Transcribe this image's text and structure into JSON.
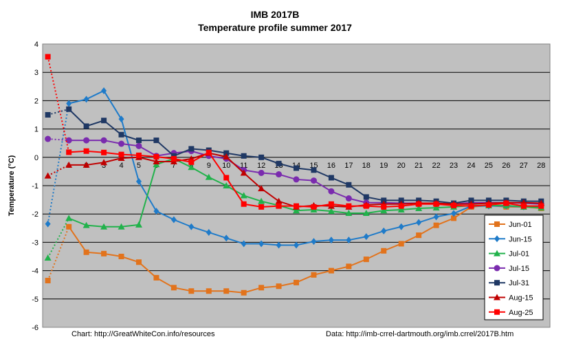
{
  "chart_data": {
    "type": "line",
    "title": "IMB 2017B",
    "subtitle": "Temperature profile summer 2017",
    "xlabel": "",
    "ylabel": "Temperature (°C)",
    "ylim": [
      -6,
      4
    ],
    "yticks": [
      "4",
      "3",
      "2",
      "1",
      "0",
      "-1",
      "-2",
      "-3",
      "-4",
      "-5",
      "-6"
    ],
    "x": [
      1,
      2,
      3,
      4,
      5,
      6,
      7,
      8,
      9,
      10,
      11,
      12,
      13,
      14,
      15,
      16,
      17,
      18,
      19,
      20,
      21,
      22,
      23,
      24,
      25,
      26,
      27,
      28
    ],
    "grid": true,
    "legend": "bottom-right",
    "footer_left": "Chart: http://GreatWhiteCon.info/resources",
    "footer_right": "Data:  http://imb-crrel-dartmouth.org/imb.crrel/2017B.htm",
    "series": [
      {
        "name": "Jun-01",
        "color": "#E2731C",
        "marker": "square",
        "surface": -4.35,
        "values": [
          -2.45,
          -3.35,
          -3.4,
          -3.5,
          -3.7,
          -4.25,
          -4.6,
          -4.72,
          -4.72,
          -4.72,
          -4.78,
          -4.6,
          -4.55,
          -4.42,
          -4.15,
          -4.0,
          -3.85,
          -3.6,
          -3.3,
          -3.05,
          -2.75,
          -2.4,
          -2.15,
          -1.75,
          -1.7,
          -1.75,
          -1.75,
          -1.8
        ]
      },
      {
        "name": "Jun-15",
        "color": "#1F7BC9",
        "marker": "diamond",
        "surface": -2.35,
        "values": [
          1.9,
          2.05,
          2.35,
          1.35,
          -0.85,
          -1.9,
          -2.2,
          -2.45,
          -2.65,
          -2.85,
          -3.05,
          -3.05,
          -3.1,
          -3.1,
          -2.97,
          -2.92,
          -2.92,
          -2.8,
          -2.6,
          -2.45,
          -2.3,
          -2.1,
          -1.98,
          -1.72,
          -1.72,
          -1.72,
          -1.75,
          -1.75
        ]
      },
      {
        "name": "Jul-01",
        "color": "#21B24B",
        "marker": "triangle",
        "surface": -3.55,
        "values": [
          -2.15,
          -2.4,
          -2.45,
          -2.45,
          -2.38,
          -0.25,
          -0.05,
          -0.35,
          -0.7,
          -1.0,
          -1.35,
          -1.55,
          -1.7,
          -1.88,
          -1.85,
          -1.9,
          -1.97,
          -1.97,
          -1.88,
          -1.85,
          -1.8,
          -1.78,
          -1.75,
          -1.7,
          -1.7,
          -1.7,
          -1.75,
          -1.78
        ]
      },
      {
        "name": "Jul-15",
        "color": "#7A2BAE",
        "marker": "circle",
        "surface": 0.65,
        "values": [
          0.6,
          0.6,
          0.6,
          0.48,
          0.4,
          0.05,
          0.15,
          0.22,
          0.05,
          -0.05,
          -0.45,
          -0.55,
          -0.6,
          -0.78,
          -0.82,
          -1.2,
          -1.45,
          -1.6,
          -1.6,
          -1.62,
          -1.62,
          -1.62,
          -1.65,
          -1.6,
          -1.6,
          -1.6,
          -1.62,
          -1.65
        ]
      },
      {
        "name": "Jul-31",
        "color": "#1F3864",
        "marker": "square",
        "surface": 1.5,
        "values": [
          1.7,
          1.1,
          1.3,
          0.8,
          0.6,
          0.6,
          0.05,
          0.3,
          0.25,
          0.15,
          0.05,
          0.0,
          -0.22,
          -0.38,
          -0.45,
          -0.72,
          -0.97,
          -1.4,
          -1.52,
          -1.52,
          -1.52,
          -1.55,
          -1.62,
          -1.52,
          -1.52,
          -1.52,
          -1.55,
          -1.55
        ]
      },
      {
        "name": "Aug-15",
        "color": "#C00000",
        "marker": "triangle",
        "surface": -0.65,
        "values": [
          -0.27,
          -0.27,
          -0.18,
          -0.03,
          0.0,
          -0.15,
          -0.15,
          -0.05,
          0.15,
          0.02,
          -0.55,
          -1.1,
          -1.55,
          -1.75,
          -1.7,
          -1.72,
          -1.75,
          -1.68,
          -1.65,
          -1.65,
          -1.62,
          -1.62,
          -1.65,
          -1.65,
          -1.62,
          -1.6,
          -1.6,
          -1.62
        ]
      },
      {
        "name": "Aug-25",
        "color": "#FF0000",
        "marker": "square",
        "surface": 3.55,
        "values": [
          0.18,
          0.22,
          0.17,
          0.1,
          0.07,
          0.02,
          -0.05,
          -0.17,
          0.17,
          -0.72,
          -1.65,
          -1.75,
          -1.72,
          -1.72,
          -1.75,
          -1.65,
          -1.72,
          -1.72,
          -1.75,
          -1.72,
          -1.65,
          -1.65,
          -1.7,
          -1.72,
          -1.68,
          -1.62,
          -1.72,
          -1.72
        ]
      }
    ]
  }
}
